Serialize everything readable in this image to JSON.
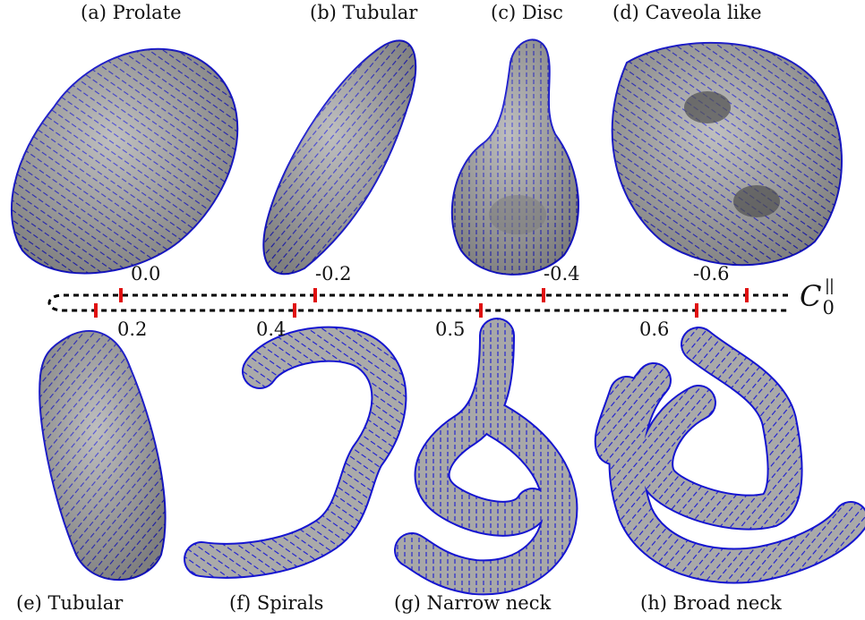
{
  "captions_top": [
    "(a) Prolate",
    "(b) Tubular",
    "(c) Disc",
    "(d) Caveola like"
  ],
  "captions_bottom": [
    "(e) Tubular",
    "(f) Spirals",
    "(g) Narrow neck",
    "(h) Broad neck"
  ],
  "ticks_upper": [
    "0.0",
    "-0.2",
    "-0.4",
    "-0.6"
  ],
  "ticks_lower": [
    "0.2",
    "0.4",
    "0.5",
    "0.6"
  ],
  "axis_label": {
    "symbol": "C",
    "subscript": "0",
    "superscript": "||"
  },
  "colors": {
    "membrane": "#a6a6a6",
    "membrane_dark": "#6f6f6f",
    "director": "#1515d0",
    "marker": "#e01010",
    "dash": "#000000"
  }
}
